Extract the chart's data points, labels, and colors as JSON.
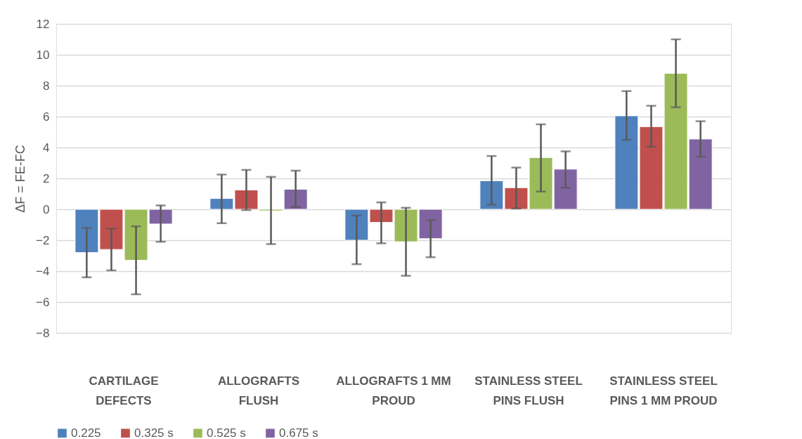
{
  "chart_data": {
    "type": "bar",
    "ylabel": "ΔF = FE-FC",
    "categories": [
      "CARTILAGE DEFECTS",
      "ALLOGRAFTS FLUSH",
      "ALLOGRAFTS 1 MM PROUD",
      "STAINLESS STEEL PINS FLUSH",
      "STAINLESS STEEL PINS 1 MM PROUD"
    ],
    "series": [
      {
        "name": "0.225",
        "color": "#4f81bd",
        "values": [
          -2.8,
          0.7,
          -2.0,
          1.85,
          6.05
        ],
        "errors": [
          [
            -4.4,
            -1.2
          ],
          [
            -0.9,
            2.25
          ],
          [
            -3.55,
            -0.4
          ],
          [
            0.3,
            3.45
          ],
          [
            4.5,
            7.65
          ]
        ]
      },
      {
        "name": "0.325 s",
        "color": "#c0504d",
        "values": [
          -2.6,
          1.25,
          -0.85,
          1.4,
          5.35
        ],
        "errors": [
          [
            -3.95,
            -1.25
          ],
          [
            -0.05,
            2.55
          ],
          [
            -2.2,
            0.45
          ],
          [
            0.05,
            2.7
          ],
          [
            4.05,
            6.7
          ]
        ]
      },
      {
        "name": "0.525 s",
        "color": "#9bbb59",
        "values": [
          -3.3,
          -0.1,
          -2.1,
          3.35,
          8.8
        ],
        "errors": [
          [
            -5.5,
            -1.1
          ],
          [
            -2.25,
            2.1
          ],
          [
            -4.3,
            0.1
          ],
          [
            1.15,
            5.5
          ],
          [
            6.6,
            11.0
          ]
        ]
      },
      {
        "name": "0.675 s",
        "color": "#8064a2",
        "values": [
          -0.95,
          1.3,
          -1.9,
          2.6,
          4.55
        ],
        "errors": [
          [
            -2.1,
            0.25
          ],
          [
            0.15,
            2.5
          ],
          [
            -3.1,
            -0.7
          ],
          [
            1.4,
            3.75
          ],
          [
            3.4,
            5.7
          ]
        ]
      }
    ],
    "ylim": [
      -8,
      12
    ],
    "yticks": [
      -8,
      -6,
      -4,
      -2,
      0,
      2,
      4,
      6,
      8,
      10,
      12
    ],
    "grid": "y",
    "legend": "bottom"
  }
}
